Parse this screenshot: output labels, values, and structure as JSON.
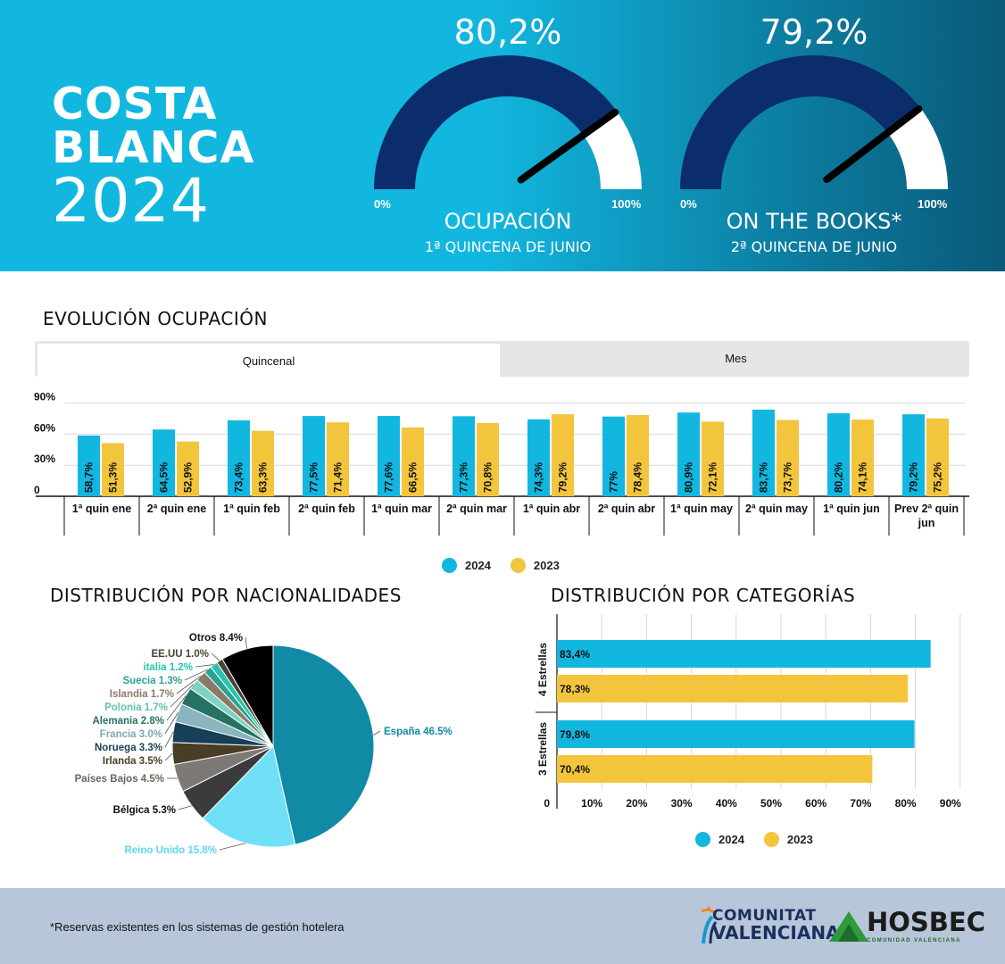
{
  "header": {
    "title_line1": "COSTA",
    "title_line2": "BLANCA",
    "title_line3": "2024",
    "gauge_min": "0%",
    "gauge_max": "100%",
    "gauges": [
      {
        "value_label": "80,2%",
        "value": 80.2,
        "label": "OCUPACIÓN",
        "sublabel": "1ª QUINCENA DE JUNIO"
      },
      {
        "value_label": "79,2%",
        "value": 79.2,
        "label": "ON THE BOOKS*",
        "sublabel": "2ª QUINCENA DE JUNIO"
      }
    ]
  },
  "evolution": {
    "title": "EVOLUCIÓN OCUPACIÓN",
    "tabs": [
      "Quincenal",
      "Mes"
    ],
    "active_tab": "Quincenal"
  },
  "nationalities": {
    "title": "DISTRIBUCIÓN POR NACIONALIDADES"
  },
  "categories": {
    "title": "DISTRIBUCIÓN POR CATEGORÍAS"
  },
  "legend": {
    "label_2024": "2024",
    "label_2023": "2023"
  },
  "colors": {
    "c2024": "#12b7e0",
    "c2023": "#f2c53d",
    "gauge_fill": "#0b2d6b",
    "header_blue": "#12b7e0"
  },
  "chart_data": [
    {
      "type": "bar",
      "categories": [
        "1ª quin ene",
        "2ª quin ene",
        "1ª quin feb",
        "2ª quin feb",
        "1ª quin mar",
        "2ª quin mar",
        "1ª quin abr",
        "2ª quin abr",
        "1ª quin may",
        "2ª quin may",
        "1ª quin jun",
        "Prev 2ª quin jun"
      ],
      "series": [
        {
          "name": "2024",
          "values": [
            58.7,
            64.5,
            73.4,
            77.5,
            77.6,
            77.3,
            74.3,
            77,
            80.9,
            83.7,
            80.2,
            79.2
          ],
          "labels": [
            "58,7%",
            "64,5%",
            "73,4%",
            "77,5%",
            "77,6%",
            "77,3%",
            "74,3%",
            "77%",
            "80,9%",
            "83,7%",
            "80,2%",
            "79,2%"
          ]
        },
        {
          "name": "2023",
          "values": [
            51.3,
            52.9,
            63.3,
            71.4,
            66.5,
            70.8,
            79.2,
            78.4,
            72.1,
            73.7,
            74.1,
            75.2
          ],
          "labels": [
            "51,3%",
            "52,9%",
            "63,3%",
            "71,4%",
            "66,5%",
            "70,8%",
            "79,2%",
            "78,4%",
            "72,1%",
            "73,7%",
            "74,1%",
            "75,2%"
          ]
        }
      ],
      "y_ticks": [
        "90%",
        "60%",
        "30%",
        "0"
      ],
      "ylim": [
        0,
        100
      ],
      "grid": true
    },
    {
      "type": "pie",
      "slices": [
        {
          "label": "España 46.5%",
          "value": 46.5,
          "color": "#118aa6"
        },
        {
          "label": "Reino Unido 15.8%",
          "value": 15.8,
          "color": "#6fe0f7"
        },
        {
          "label": "Bélgica 5.3%",
          "value": 5.3,
          "color": "#3b3b3b"
        },
        {
          "label": "Países Bajos 4.5%",
          "value": 4.5,
          "color": "#7d7a76"
        },
        {
          "label": "Irlanda 3.5%",
          "value": 3.5,
          "color": "#4a3d27"
        },
        {
          "label": "Noruega 3.3%",
          "value": 3.3,
          "color": "#173f57"
        },
        {
          "label": "Francia 3.0%",
          "value": 3.0,
          "color": "#8ab4c0"
        },
        {
          "label": "Alemania 2.8%",
          "value": 2.8,
          "color": "#267262"
        },
        {
          "label": "Polonia 1.7%",
          "value": 1.7,
          "color": "#7fd3c4"
        },
        {
          "label": "Islandia 1.7%",
          "value": 1.7,
          "color": "#8a7a68"
        },
        {
          "label": "Suecia 1.3%",
          "value": 1.3,
          "color": "#2aa392"
        },
        {
          "label": "italia 1.2%",
          "value": 1.2,
          "color": "#27c4b0"
        },
        {
          "label": "EE.UU 1.0%",
          "value": 1.0,
          "color": "#4d4132"
        },
        {
          "label": "Otros 8.4%",
          "value": 8.4,
          "color": "#000000"
        }
      ]
    },
    {
      "type": "bar",
      "orientation": "horizontal",
      "categories": [
        "4 Estrellas",
        "3 Estrellas"
      ],
      "series": [
        {
          "name": "2024",
          "values": [
            83.4,
            79.8
          ],
          "labels": [
            "83,4%",
            "79,8%"
          ]
        },
        {
          "name": "2023",
          "values": [
            78.3,
            70.4
          ],
          "labels": [
            "78,3%",
            "70,4%"
          ]
        }
      ],
      "x_ticks": [
        "0",
        "10%",
        "20%",
        "30%",
        "40%",
        "50%",
        "60%",
        "70%",
        "80%",
        "90%"
      ],
      "xlim": [
        0,
        90
      ]
    }
  ],
  "footer": {
    "note": "*Reservas existentes en los sistemas de gestión hotelera",
    "logo_cv_line1": "COMUNITAT",
    "logo_cv_line2": "VALENCIANA",
    "logo_hosbec": "HOSBEC",
    "logo_hosbec_sub": "COMUNIDAD VALENCIANA"
  }
}
